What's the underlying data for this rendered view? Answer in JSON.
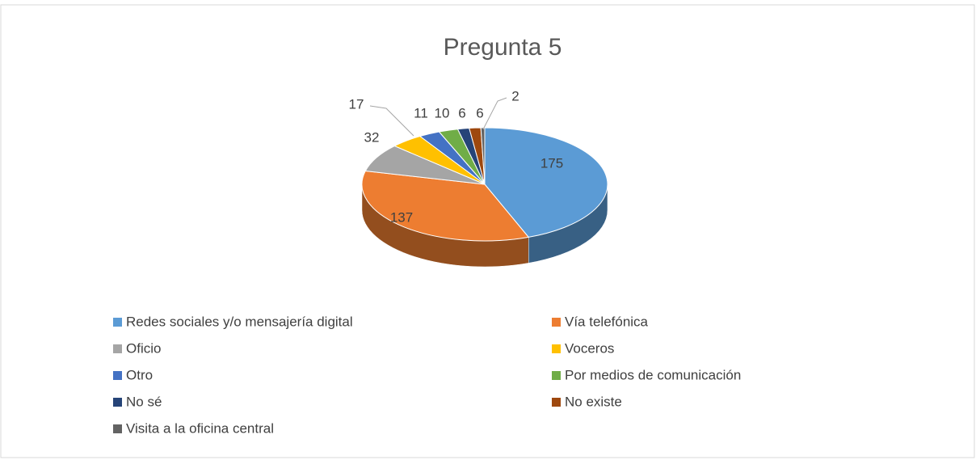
{
  "chart_data": {
    "type": "pie",
    "title": "Pregunta 5",
    "categories": [
      "Redes sociales y/o mensajería digital",
      "Vía telefónica",
      "Oficio",
      "Voceros",
      "Otro",
      "Por medios de comunicación",
      "No sé",
      "No existe",
      "Visita a la oficina central"
    ],
    "values": [
      175,
      137,
      32,
      17,
      11,
      10,
      6,
      6,
      2
    ],
    "colors": [
      "#5b9bd5",
      "#ed7d31",
      "#a5a5a5",
      "#ffc000",
      "#4472c4",
      "#70ad47",
      "#264478",
      "#9e480e",
      "#636363"
    ],
    "legend": "bottom"
  }
}
